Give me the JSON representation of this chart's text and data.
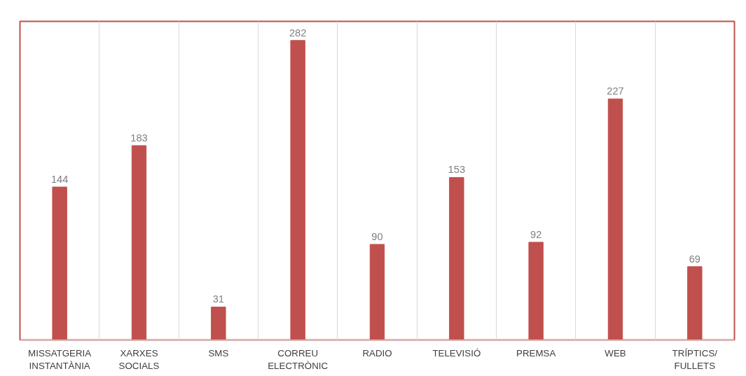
{
  "chart_data": {
    "type": "bar",
    "categories": [
      "MISSATGERIA\nINSTANTÀNIA",
      "XARXES\nSOCIALS",
      "SMS",
      "CORREU\nELECTRÒNIC",
      "RADIO",
      "TELEVISIÓ",
      "PREMSA",
      "WEB",
      "TRÍPTICS/\nFULLETS"
    ],
    "values": [
      144,
      183,
      31,
      282,
      90,
      153,
      92,
      227,
      69
    ],
    "color": "#c0504d",
    "ylim": [
      0,
      300
    ],
    "data_labels": true,
    "grid": "x"
  }
}
